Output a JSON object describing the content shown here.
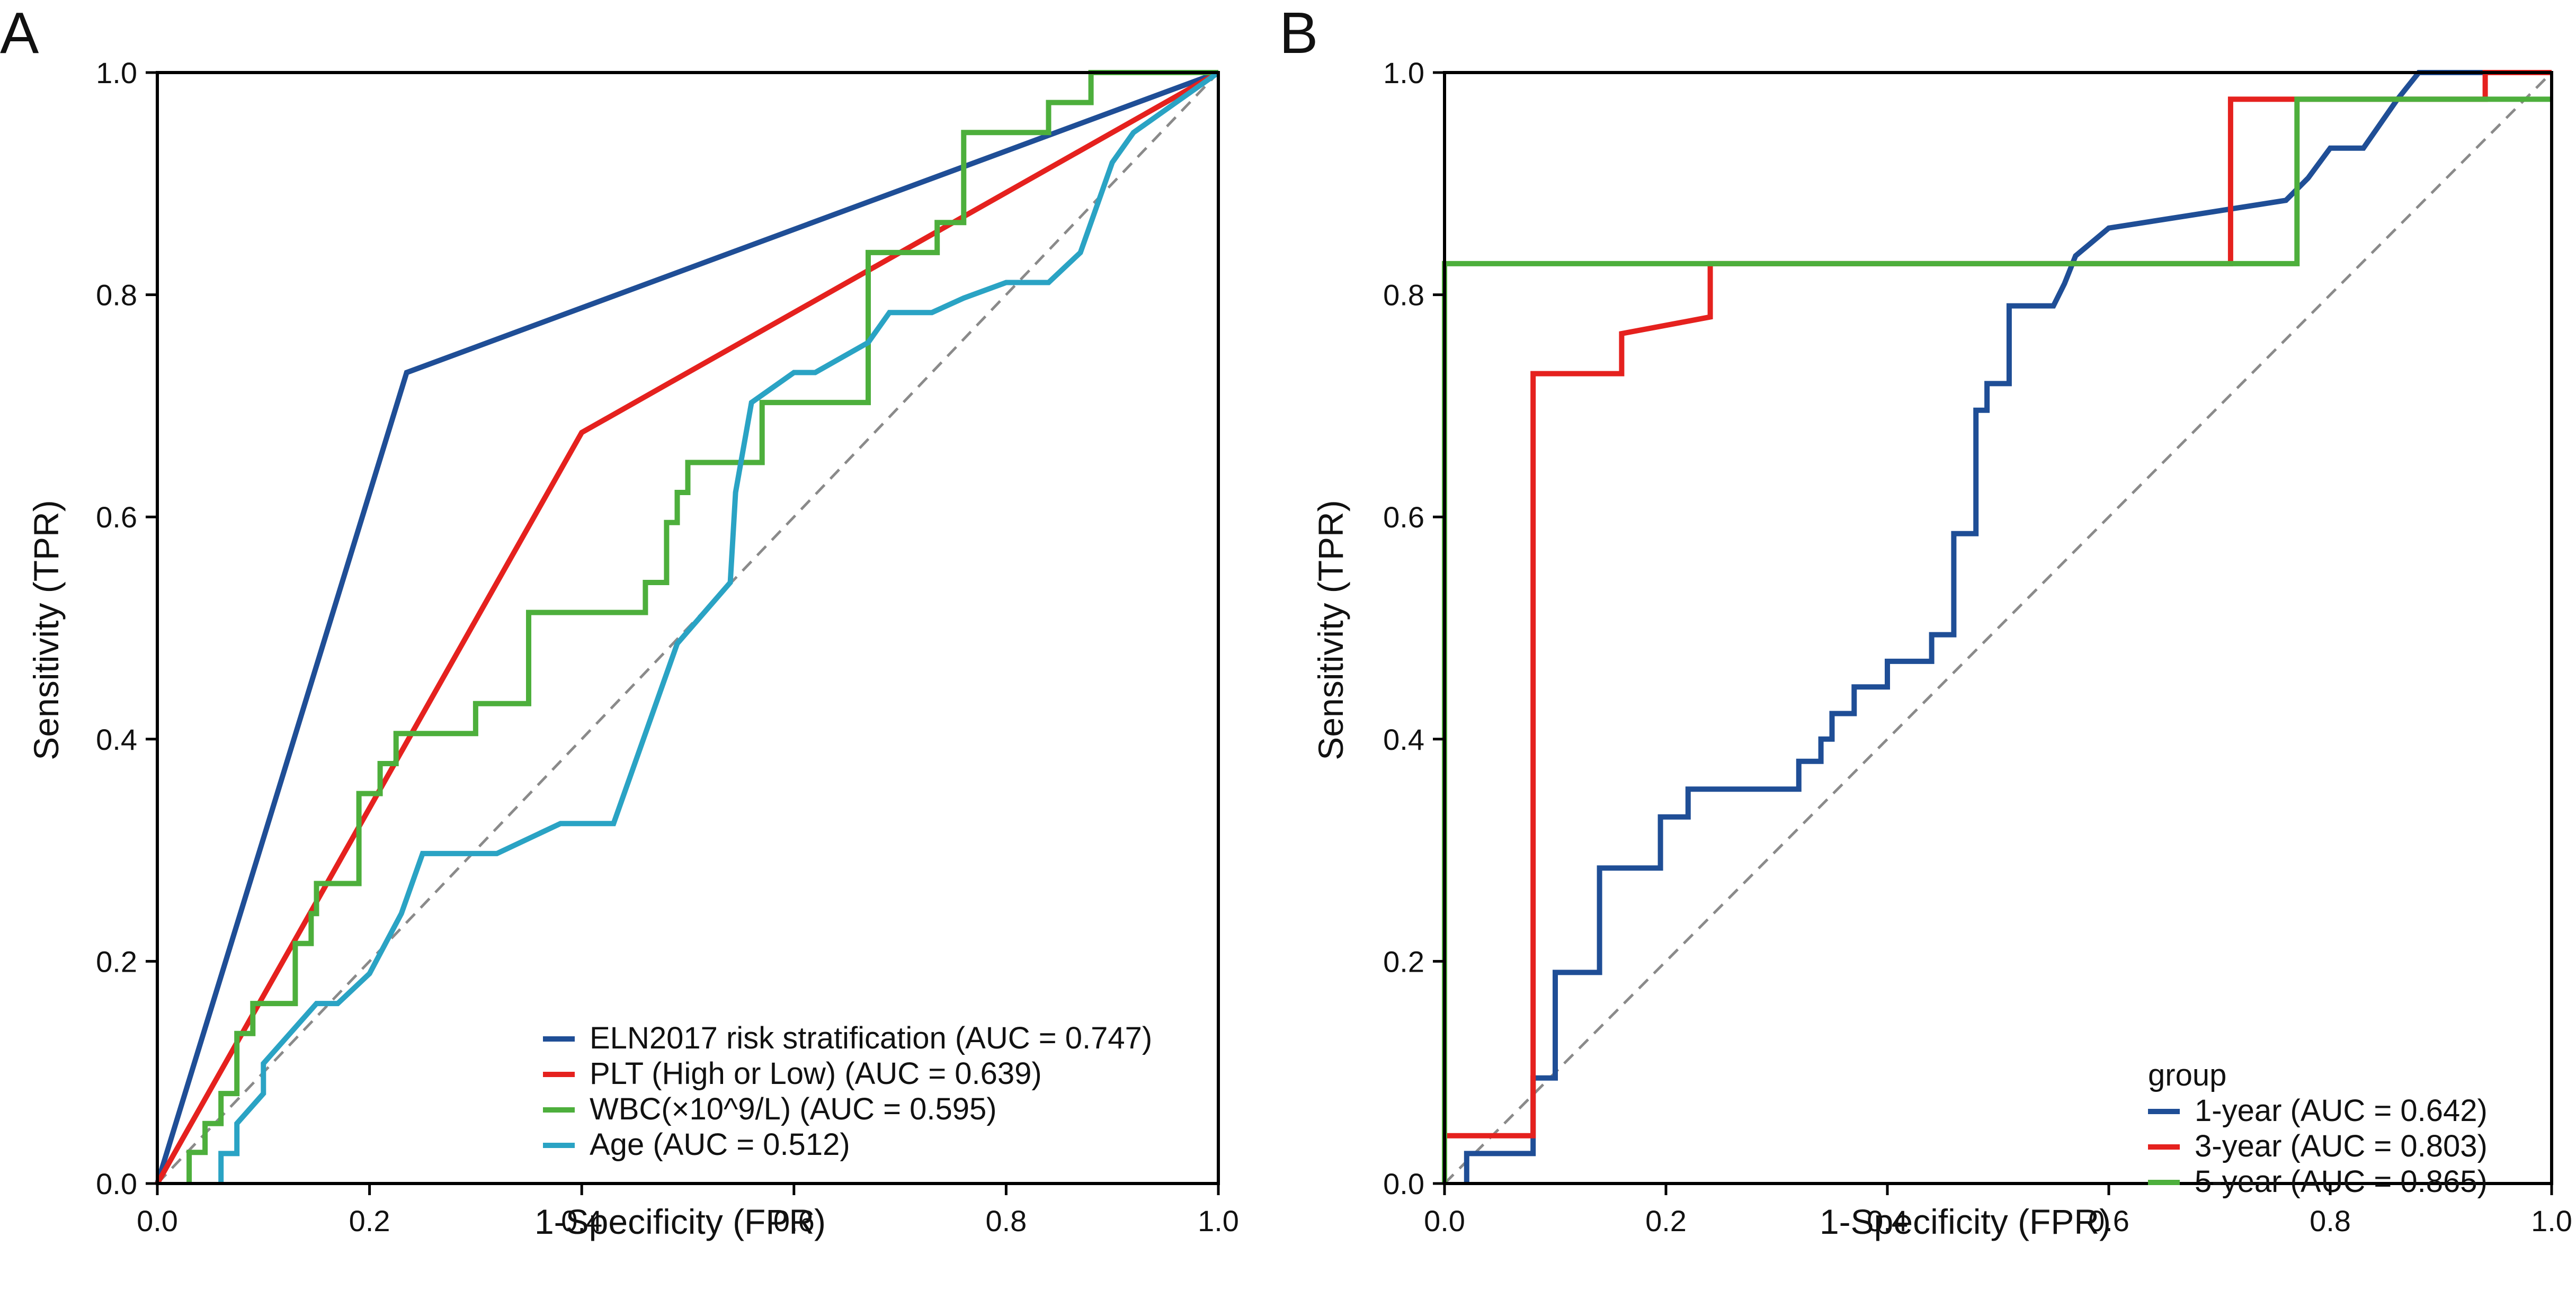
{
  "chart_data": [
    {
      "panel": "A",
      "type": "line",
      "xlabel": "1-Specificity (FPR)",
      "ylabel": "Sensitivity (TPR)",
      "xlim": [
        0,
        1
      ],
      "ylim": [
        0,
        1
      ],
      "xticks": [
        "0.0",
        "0.2",
        "0.4",
        "0.6",
        "0.8",
        "1.0"
      ],
      "yticks": [
        "0.0",
        "0.2",
        "0.4",
        "0.6",
        "0.8",
        "1.0"
      ],
      "grid": false,
      "legend_position": "bottom-right",
      "legend_title": "",
      "reference_line": "diagonal dashed",
      "series": [
        {
          "name": "ELN2017 risk stratification (AUC = 0.747)",
          "color": "#1f4e96",
          "x": [
            0,
            0.235,
            1
          ],
          "y": [
            0,
            0.73,
            1
          ]
        },
        {
          "name": "PLT (High or Low) (AUC = 0.639)",
          "color": "#e5211e",
          "x": [
            0,
            0.4,
            1
          ],
          "y": [
            0,
            0.676,
            1
          ]
        },
        {
          "name": "WBC(×10^9/L) (AUC = 0.595)",
          "color": "#4daf3c",
          "x": [
            0.03,
            0.03,
            0.045,
            0.045,
            0.06,
            0.06,
            0.075,
            0.075,
            0.09,
            0.09,
            0.13,
            0.13,
            0.145,
            0.145,
            0.15,
            0.15,
            0.19,
            0.19,
            0.21,
            0.21,
            0.225,
            0.225,
            0.3,
            0.3,
            0.35,
            0.35,
            0.46,
            0.46,
            0.48,
            0.48,
            0.49,
            0.49,
            0.5,
            0.5,
            0.515,
            0.515,
            0.52,
            0.52,
            0.57,
            0.57,
            0.62,
            0.62,
            0.67,
            0.67,
            0.735,
            0.735,
            0.76,
            0.76,
            0.84,
            0.84,
            0.88,
            0.88,
            1
          ],
          "y": [
            0,
            0.028,
            0.028,
            0.054,
            0.054,
            0.081,
            0.081,
            0.135,
            0.135,
            0.162,
            0.162,
            0.216,
            0.216,
            0.243,
            0.243,
            0.27,
            0.27,
            0.351,
            0.351,
            0.378,
            0.378,
            0.405,
            0.405,
            0.432,
            0.432,
            0.514,
            0.514,
            0.541,
            0.541,
            0.595,
            0.595,
            0.622,
            0.622,
            0.649,
            0.649,
            0.649,
            0.649,
            0.649,
            0.649,
            0.703,
            0.703,
            0.703,
            0.703,
            0.838,
            0.838,
            0.865,
            0.865,
            0.946,
            0.946,
            0.973,
            0.973,
            1.0,
            1.0
          ]
        },
        {
          "name": "Age (AUC = 0.512)",
          "color": "#2aa3c4",
          "x": [
            0.06,
            0.06,
            0.075,
            0.075,
            0.1,
            0.1,
            0.15,
            0.17,
            0.2,
            0.23,
            0.25,
            0.32,
            0.38,
            0.43,
            0.47,
            0.49,
            0.54,
            0.545,
            0.56,
            0.6,
            0.62,
            0.67,
            0.69,
            0.73,
            0.76,
            0.8,
            0.84,
            0.87,
            0.9,
            0.92,
            0.96,
            1
          ],
          "y": [
            0,
            0.027,
            0.027,
            0.054,
            0.081,
            0.108,
            0.162,
            0.162,
            0.189,
            0.243,
            0.297,
            0.297,
            0.324,
            0.324,
            0.432,
            0.486,
            0.541,
            0.622,
            0.703,
            0.73,
            0.73,
            0.757,
            0.784,
            0.784,
            0.797,
            0.811,
            0.811,
            0.838,
            0.919,
            0.946,
            0.973,
            1.0
          ]
        }
      ]
    },
    {
      "panel": "B",
      "type": "line",
      "xlabel": "1-Specificity (FPR)",
      "ylabel": "Sensitivity (TPR)",
      "xlim": [
        0,
        1
      ],
      "ylim": [
        0,
        1
      ],
      "xticks": [
        "0.0",
        "0.2",
        "0.4",
        "0.6",
        "0.8",
        "1.0"
      ],
      "yticks": [
        "0.0",
        "0.2",
        "0.4",
        "0.6",
        "0.8",
        "1.0"
      ],
      "grid": false,
      "legend_position": "bottom-right",
      "legend_title": "group",
      "reference_line": "diagonal dashed",
      "series": [
        {
          "name": "1-year (AUC = 0.642)",
          "color": "#1f4e96",
          "x": [
            0.02,
            0.02,
            0.08,
            0.08,
            0.1,
            0.1,
            0.14,
            0.14,
            0.18,
            0.18,
            0.195,
            0.195,
            0.22,
            0.22,
            0.32,
            0.32,
            0.34,
            0.34,
            0.35,
            0.35,
            0.37,
            0.37,
            0.4,
            0.4,
            0.44,
            0.44,
            0.46,
            0.46,
            0.48,
            0.48,
            0.49,
            0.49,
            0.51,
            0.51,
            0.55,
            0.55,
            0.56,
            0.57,
            0.6,
            0.76,
            0.78,
            0.8,
            0.83,
            0.86,
            0.88,
            0.91,
            0.92,
            1
          ],
          "y": [
            0,
            0.027,
            0.027,
            0.095,
            0.095,
            0.19,
            0.19,
            0.284,
            0.284,
            0.284,
            0.284,
            0.33,
            0.33,
            0.355,
            0.355,
            0.38,
            0.38,
            0.4,
            0.4,
            0.423,
            0.423,
            0.447,
            0.447,
            0.47,
            0.47,
            0.494,
            0.494,
            0.585,
            0.585,
            0.696,
            0.696,
            0.72,
            0.72,
            0.79,
            0.79,
            0.79,
            0.81,
            0.835,
            0.86,
            0.885,
            0.905,
            0.932,
            0.932,
            0.975,
            1.0,
            1.0,
            1.0,
            1.0
          ]
        },
        {
          "name": "3-year (AUC = 0.803)",
          "color": "#e5211e",
          "x": [
            0,
            0,
            0.08,
            0.08,
            0.16,
            0.16,
            0.24,
            0.24,
            0.71,
            0.71,
            0.94,
            0.94,
            1
          ],
          "y": [
            0,
            0.043,
            0.043,
            0.729,
            0.729,
            0.765,
            0.78,
            0.828,
            0.828,
            0.976,
            0.976,
            1.0,
            1.0
          ]
        },
        {
          "name": "5-year (AUC = 0.865)",
          "color": "#4daf3c",
          "x": [
            0,
            0,
            0.77,
            0.77,
            1
          ],
          "y": [
            0,
            0.828,
            0.828,
            0.976,
            0.976
          ]
        }
      ]
    }
  ]
}
